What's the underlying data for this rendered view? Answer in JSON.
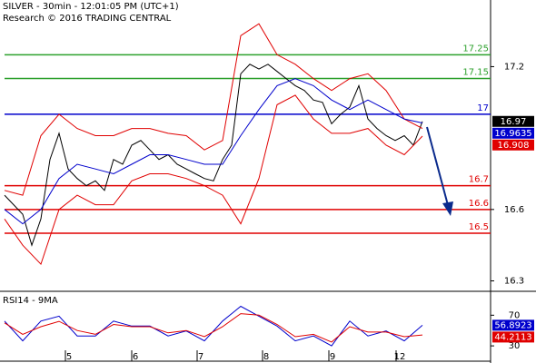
{
  "chart_data": [
    {
      "type": "line",
      "title": "SILVER - 30min - 12:01:05 PM (UTC+1)",
      "subtitle": "Research © 2016 TRADING CENTRAL",
      "x": [
        1,
        3,
        5,
        7,
        9,
        11,
        13,
        15,
        17,
        19,
        21,
        23,
        25,
        27,
        29,
        31,
        33,
        35,
        37,
        39,
        41,
        43,
        45,
        47,
        49,
        51,
        53,
        55,
        57,
        59,
        61,
        63,
        65,
        67,
        69,
        71,
        73,
        75,
        77,
        79,
        81,
        83,
        85,
        87,
        89,
        91,
        93
      ],
      "xlim": [
        0,
        108
      ],
      "xticks": [
        {
          "value": 14.4,
          "label": "5"
        },
        {
          "value": 29,
          "label": "6"
        },
        {
          "value": 43.4,
          "label": "7"
        },
        {
          "value": 57.8,
          "label": "8"
        },
        {
          "value": 72.4,
          "label": "9"
        },
        {
          "value": 87.2,
          "label": "12"
        }
      ],
      "ylim": [
        16.26,
        17.48
      ],
      "yticks": [
        17.2,
        16.6,
        16.3
      ],
      "levels": [
        {
          "value": 17.25,
          "color": "#2ca02c"
        },
        {
          "value": 17.15,
          "color": "#2ca02c"
        },
        {
          "value": 17,
          "color": "#0000cc"
        },
        {
          "value": 16.7,
          "color": "#e00000"
        },
        {
          "value": 16.6,
          "color": "#e00000"
        },
        {
          "value": 16.5,
          "color": "#e00000"
        }
      ],
      "series": [
        {
          "color": "#000000",
          "values": [
            16.66,
            16.62,
            16.58,
            16.45,
            16.56,
            16.81,
            16.92,
            16.77,
            16.73,
            16.7,
            16.72,
            16.68,
            16.81,
            16.79,
            16.87,
            16.89,
            16.85,
            16.81,
            16.83,
            16.79,
            16.77,
            16.75,
            16.73,
            16.72,
            16.81,
            16.87,
            17.17,
            17.21,
            17.19,
            17.21,
            17.18,
            17.15,
            17.12,
            17.1,
            17.06,
            17.05,
            16.96,
            17.0,
            17.03,
            17.12,
            16.98,
            16.94,
            16.91,
            16.89,
            16.91,
            16.87,
            16.97
          ]
        },
        {
          "color": "#e00000",
          "x": [
            1,
            5,
            9,
            13,
            17,
            21,
            25,
            29,
            33,
            37,
            41,
            45,
            49,
            53,
            57,
            61,
            65,
            69,
            73,
            77,
            81,
            85,
            89,
            93
          ],
          "values": [
            16.68,
            16.66,
            16.91,
            17.0,
            16.94,
            16.91,
            16.91,
            16.94,
            16.94,
            16.92,
            16.91,
            16.85,
            16.89,
            17.33,
            17.38,
            17.25,
            17.21,
            17.15,
            17.1,
            17.15,
            17.17,
            17.1,
            16.98,
            16.94
          ]
        },
        {
          "color": "#e00000",
          "x": [
            1,
            5,
            9,
            13,
            17,
            21,
            25,
            29,
            33,
            37,
            41,
            45,
            49,
            53,
            57,
            61,
            65,
            69,
            73,
            77,
            81,
            85,
            89,
            93
          ],
          "values": [
            16.56,
            16.45,
            16.37,
            16.6,
            16.66,
            16.62,
            16.62,
            16.72,
            16.75,
            16.75,
            16.73,
            16.7,
            16.66,
            16.54,
            16.73,
            17.04,
            17.08,
            16.98,
            16.92,
            16.92,
            16.94,
            16.87,
            16.83,
            16.908
          ]
        },
        {
          "color": "#0000cc",
          "x": [
            1,
            5,
            9,
            13,
            17,
            21,
            25,
            29,
            33,
            37,
            41,
            45,
            49,
            53,
            57,
            61,
            65,
            69,
            73,
            77,
            81,
            85,
            89,
            93
          ],
          "values": [
            16.6,
            16.54,
            16.6,
            16.73,
            16.79,
            16.77,
            16.75,
            16.79,
            16.83,
            16.83,
            16.81,
            16.79,
            16.79,
            16.91,
            17.02,
            17.12,
            17.15,
            17.12,
            17.06,
            17.02,
            17.06,
            17.02,
            16.98,
            16.9635
          ]
        }
      ]
    },
    {
      "type": "line",
      "title": "RSI14 - 9MA",
      "x": [
        1,
        5,
        9,
        13,
        17,
        21,
        25,
        29,
        33,
        37,
        41,
        45,
        49,
        53,
        57,
        61,
        65,
        69,
        73,
        77,
        81,
        85,
        89,
        93
      ],
      "xlim": [
        0,
        108
      ],
      "ylim": [
        10,
        100
      ],
      "yticks": [
        70,
        30
      ],
      "series": [
        {
          "color": "#0000cc",
          "values": [
            62.3,
            36.5,
            62.3,
            68.7,
            42.9,
            42.9,
            62.3,
            55.8,
            55.8,
            42.9,
            49.4,
            36.5,
            62.3,
            81.6,
            68.7,
            55.8,
            36.5,
            42.9,
            30.0,
            62.3,
            42.9,
            49.4,
            36.5,
            56.8923
          ]
        },
        {
          "color": "#e00000",
          "values": [
            60,
            45,
            55,
            62,
            50,
            45,
            58,
            55,
            55,
            47,
            50,
            42,
            55,
            72,
            70,
            58,
            42,
            45,
            35,
            55,
            48,
            48,
            42,
            44.2113
          ]
        }
      ]
    }
  ]
}
